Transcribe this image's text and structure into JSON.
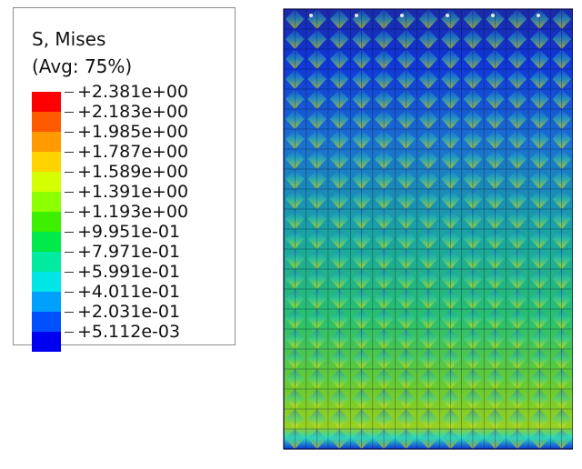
{
  "legend": {
    "title": "S, Mises",
    "subtitle": "(Avg: 75%)",
    "labels": [
      "+2.381e+00",
      "+2.183e+00",
      "+1.985e+00",
      "+1.787e+00",
      "+1.589e+00",
      "+1.391e+00",
      "+1.193e+00",
      "+9.951e-01",
      "+7.971e-01",
      "+5.991e-01",
      "+4.011e-01",
      "+2.031e-01",
      "+5.112e-03"
    ],
    "band_colors": [
      "#ff0000",
      "#ff5a00",
      "#ff9a00",
      "#ffd200",
      "#d4ff00",
      "#8cff00",
      "#3cf000",
      "#00e84a",
      "#00eaa0",
      "#00e6e6",
      "#00a0ff",
      "#0050ff",
      "#0000f0"
    ]
  },
  "plot": {
    "type": "von Mises stress contour",
    "color_scale": "rainbow"
  }
}
